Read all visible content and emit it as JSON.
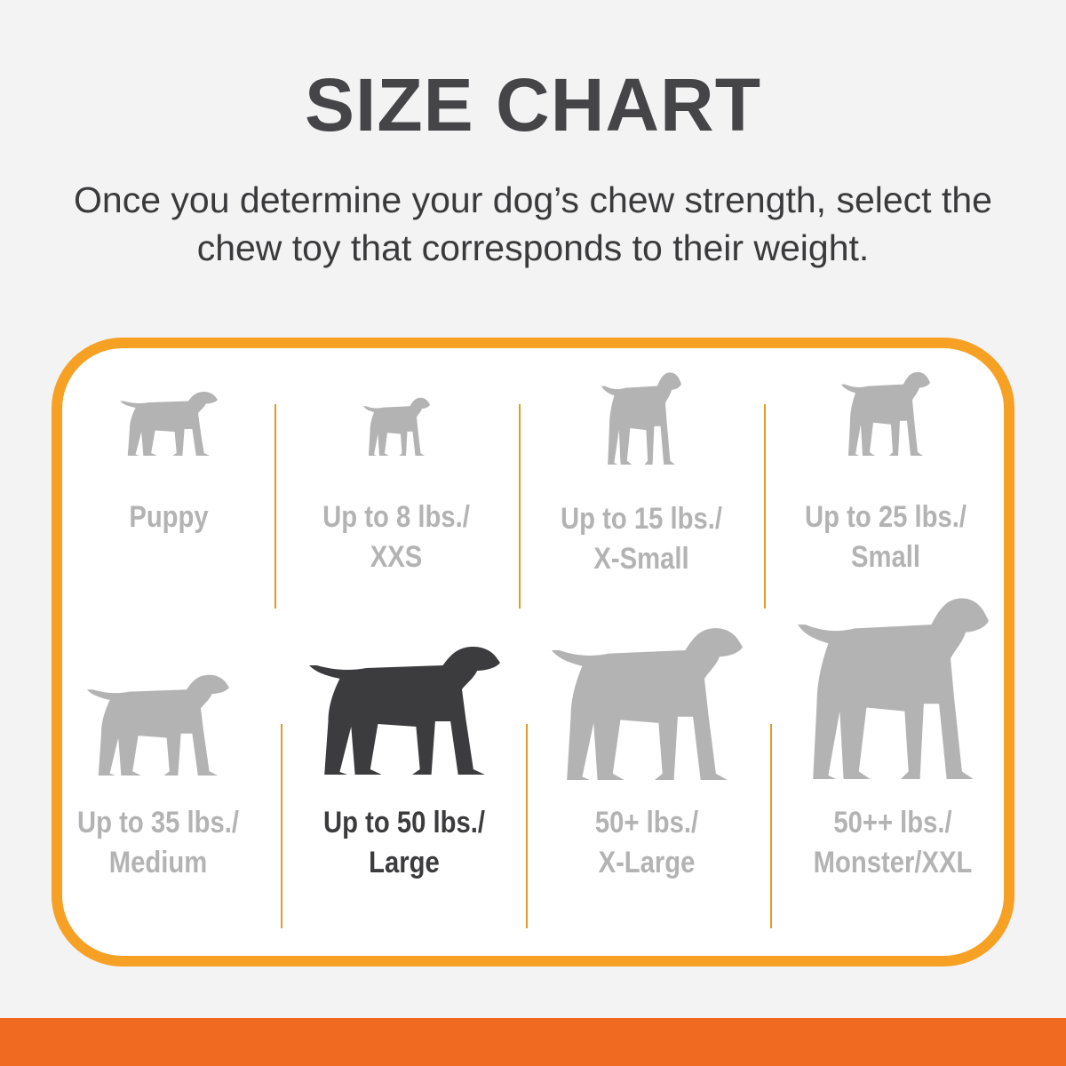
{
  "header": {
    "title": "SIZE CHART",
    "subtitle_line1": "Once you determine your dog’s chew strength, select the",
    "subtitle_line2": "chew toy that corresponds to their weight."
  },
  "colors": {
    "border": "#f6a024",
    "footer_bar": "#f06a22",
    "inactive": "#b3b3b3",
    "active": "#3c3c3e"
  },
  "sizes": [
    {
      "icon": "puppy-icon",
      "line1": "Puppy",
      "line2": "",
      "active": false
    },
    {
      "icon": "chihuahua-icon",
      "line1": "Up to 8 lbs./",
      "line2": "XXS",
      "active": false
    },
    {
      "icon": "toy-terrier-icon",
      "line1": "Up to 15 lbs./",
      "line2": "X-Small",
      "active": false
    },
    {
      "icon": "yorkie-icon",
      "line1": "Up to 25 lbs./",
      "line2": "Small",
      "active": false
    },
    {
      "icon": "beagle-icon",
      "line1": "Up to 35 lbs./",
      "line2": "Medium",
      "active": false
    },
    {
      "icon": "labrador-icon",
      "line1": "Up to 50 lbs./",
      "line2": "Large",
      "active": true
    },
    {
      "icon": "shepherd-icon",
      "line1": "50+ lbs./",
      "line2": "X-Large",
      "active": false
    },
    {
      "icon": "great-dane-icon",
      "line1": "50++ lbs./",
      "line2": "Monster/XXL",
      "active": false
    }
  ]
}
